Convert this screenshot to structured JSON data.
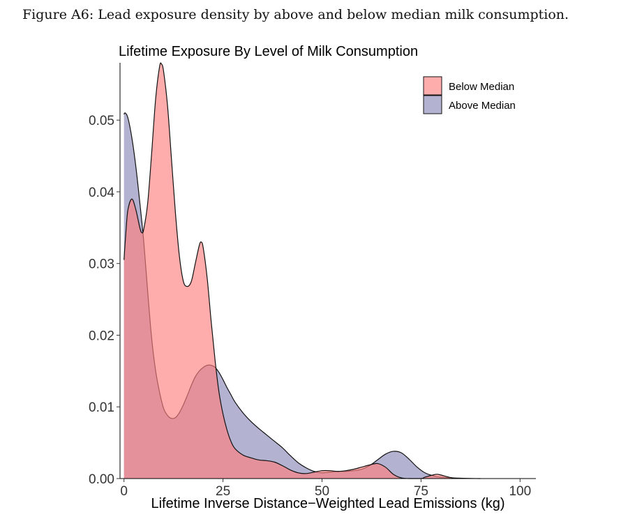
{
  "caption": "Figure A6: Lead exposure density by above and below median milk consumption.",
  "chart_data": {
    "type": "area",
    "title": "Lifetime Exposure By Level of Milk Consumption",
    "xlabel": "Lifetime Inverse Distance−Weighted Lead Emissions (kg)",
    "ylabel": "",
    "xlim": [
      -1,
      104
    ],
    "ylim": [
      0,
      0.058
    ],
    "xticks": [
      0,
      25,
      50,
      75,
      100
    ],
    "xtick_labels": [
      "0",
      "25",
      "50",
      "75",
      "100"
    ],
    "yticks": [
      0,
      0.01,
      0.02,
      0.03,
      0.04,
      0.05
    ],
    "ytick_labels": [
      "0.00",
      "0.01",
      "0.02",
      "0.03",
      "0.04",
      "0.05"
    ],
    "legend_position": "top-right",
    "grid": false,
    "series": [
      {
        "name": "Above Median",
        "color": "#8a88b8",
        "points": [
          [
            0,
            0.0508
          ],
          [
            0.3,
            0.051
          ],
          [
            1,
            0.0503
          ],
          [
            2,
            0.0475
          ],
          [
            3,
            0.0435
          ],
          [
            4,
            0.0385
          ],
          [
            5,
            0.033
          ],
          [
            6,
            0.026
          ],
          [
            7,
            0.0195
          ],
          [
            8,
            0.015
          ],
          [
            9,
            0.012
          ],
          [
            10,
            0.0098
          ],
          [
            11,
            0.0088
          ],
          [
            12,
            0.0084
          ],
          [
            13,
            0.0085
          ],
          [
            14,
            0.0092
          ],
          [
            15,
            0.0103
          ],
          [
            16,
            0.0116
          ],
          [
            17,
            0.013
          ],
          [
            18,
            0.0142
          ],
          [
            19,
            0.015
          ],
          [
            20,
            0.0155
          ],
          [
            21,
            0.0158
          ],
          [
            22,
            0.0158
          ],
          [
            23,
            0.0155
          ],
          [
            24,
            0.0148
          ],
          [
            25,
            0.0138
          ],
          [
            26,
            0.0127
          ],
          [
            27,
            0.0117
          ],
          [
            28,
            0.0107
          ],
          [
            30,
            0.0092
          ],
          [
            32,
            0.008
          ],
          [
            34,
            0.007
          ],
          [
            36,
            0.0061
          ],
          [
            38,
            0.0052
          ],
          [
            40,
            0.0043
          ],
          [
            42,
            0.0032
          ],
          [
            44,
            0.0022
          ],
          [
            46,
            0.0015
          ],
          [
            48,
            0.001
          ],
          [
            50,
            0.0008
          ],
          [
            52,
            0.0009
          ],
          [
            54,
            0.001
          ],
          [
            56,
            0.001
          ],
          [
            58,
            0.0011
          ],
          [
            60,
            0.0013
          ],
          [
            62,
            0.0018
          ],
          [
            64,
            0.0026
          ],
          [
            66,
            0.0034
          ],
          [
            68,
            0.0038
          ],
          [
            70,
            0.0036
          ],
          [
            72,
            0.0027
          ],
          [
            74,
            0.0016
          ],
          [
            76,
            0.0008
          ],
          [
            78,
            0.0004
          ],
          [
            80,
            0.0002
          ],
          [
            85,
            5e-05
          ],
          [
            90,
            0.0
          ]
        ]
      },
      {
        "name": "Below Median",
        "color": "#ff7f7f",
        "points": [
          [
            0,
            0.0305
          ],
          [
            0.5,
            0.0345
          ],
          [
            1,
            0.0375
          ],
          [
            2,
            0.039
          ],
          [
            3,
            0.0375
          ],
          [
            4,
            0.035
          ],
          [
            4.5,
            0.0343
          ],
          [
            5,
            0.0348
          ],
          [
            6,
            0.0385
          ],
          [
            7,
            0.0455
          ],
          [
            8,
            0.053
          ],
          [
            9,
            0.0575
          ],
          [
            9.5,
            0.0578
          ],
          [
            10,
            0.0568
          ],
          [
            11,
            0.052
          ],
          [
            12,
            0.0445
          ],
          [
            13,
            0.037
          ],
          [
            14,
            0.031
          ],
          [
            15,
            0.0275
          ],
          [
            16,
            0.0268
          ],
          [
            17,
            0.0275
          ],
          [
            18,
            0.03
          ],
          [
            19,
            0.0325
          ],
          [
            19.5,
            0.033
          ],
          [
            20,
            0.0322
          ],
          [
            21,
            0.028
          ],
          [
            22,
            0.022
          ],
          [
            23,
            0.0165
          ],
          [
            24,
            0.012
          ],
          [
            25,
            0.009
          ],
          [
            26,
            0.0068
          ],
          [
            27,
            0.0052
          ],
          [
            28,
            0.0042
          ],
          [
            30,
            0.0033
          ],
          [
            32,
            0.0029
          ],
          [
            34,
            0.0026
          ],
          [
            36,
            0.0025
          ],
          [
            38,
            0.0023
          ],
          [
            40,
            0.0018
          ],
          [
            42,
            0.0012
          ],
          [
            44,
            0.0008
          ],
          [
            46,
            0.0007
          ],
          [
            48,
            0.0009
          ],
          [
            50,
            0.0011
          ],
          [
            52,
            0.0011
          ],
          [
            54,
            0.001
          ],
          [
            56,
            0.0011
          ],
          [
            58,
            0.0013
          ],
          [
            60,
            0.0016
          ],
          [
            62,
            0.0019
          ],
          [
            64,
            0.0021
          ],
          [
            66,
            0.0016
          ],
          [
            68,
            0.0006
          ],
          [
            70,
            0.0001
          ],
          [
            72,
            0.0
          ],
          [
            75,
            0.0
          ],
          [
            76,
            0.0002
          ],
          [
            78,
            0.0005
          ],
          [
            79,
            0.0006
          ],
          [
            80,
            0.0005
          ],
          [
            82,
            0.0002
          ],
          [
            84,
            0.0
          ]
        ]
      }
    ]
  }
}
